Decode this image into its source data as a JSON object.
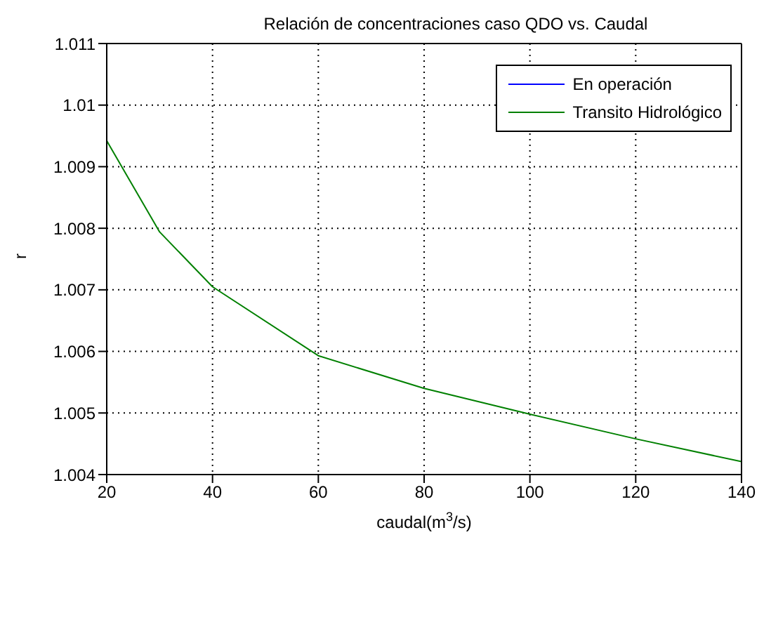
{
  "chart_data": {
    "type": "line",
    "title": "Relación de concentraciones caso QDO vs. Caudal",
    "xlabel": "caudal(m$^{3}$/s)",
    "ylabel": "r",
    "x": [
      20,
      30,
      40,
      60,
      80,
      100,
      120,
      140
    ],
    "series": [
      {
        "name": "En operación",
        "color": "#0000ff",
        "values": [
          null,
          null,
          null,
          null,
          null,
          null,
          null,
          null
        ]
      },
      {
        "name": "Transito Hidrológico",
        "color": "#008000",
        "values": [
          1.00942,
          1.00794,
          1.00705,
          1.00593,
          1.0054,
          1.00498,
          1.00458,
          1.00421
        ]
      }
    ],
    "xlim": [
      20,
      140
    ],
    "xticks": [
      20,
      40,
      60,
      80,
      100,
      120,
      140
    ],
    "ylim": [
      1.004,
      1.011
    ],
    "yticks": [
      1.004,
      1.005,
      1.006,
      1.007,
      1.008,
      1.009,
      1.01,
      1.011
    ],
    "grid": true,
    "legend": "top right",
    "line_style": "solid",
    "marker": "none"
  }
}
